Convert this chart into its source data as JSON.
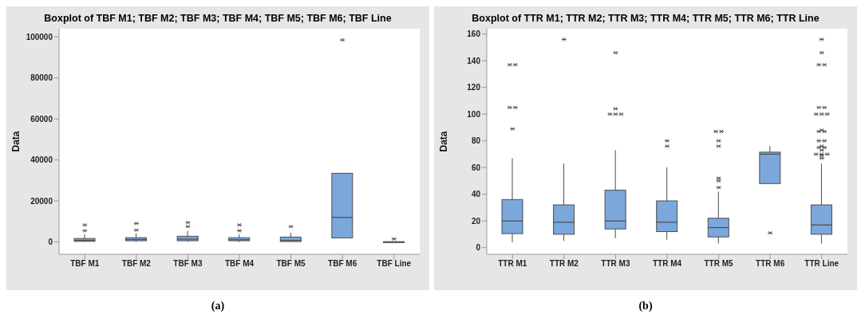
{
  "chart_data": [
    {
      "type": "box",
      "title": "Boxplot of TBF M1; TBF M2; TBF M3; TBF M4; TBF M5; TBF M6; TBF Line",
      "ylabel": "Data",
      "categories": [
        "TBF M1",
        "TBF M2",
        "TBF M3",
        "TBF M4",
        "TBF M5",
        "TBF M6",
        "TBF Line"
      ],
      "color": "#7ba7db",
      "ylim": [
        -6000,
        104000
      ],
      "yticks": [
        0,
        20000,
        40000,
        60000,
        80000,
        100000
      ],
      "annotations": [
        "(a)"
      ],
      "boxes": [
        {
          "low": 0,
          "q1": 300,
          "median": 800,
          "q3": 1700,
          "high": 3800,
          "outliers": [
            5500,
            8300
          ]
        },
        {
          "low": 0,
          "q1": 600,
          "median": 1200,
          "q3": 2100,
          "high": 4200,
          "outliers": [
            5800,
            9000
          ]
        },
        {
          "low": 0,
          "q1": 600,
          "median": 1400,
          "q3": 2800,
          "high": 5500,
          "outliers": [
            7500,
            9500
          ]
        },
        {
          "low": 0,
          "q1": 600,
          "median": 1100,
          "q3": 2100,
          "high": 3800,
          "outliers": [
            5500,
            8300
          ]
        },
        {
          "low": 0,
          "q1": 200,
          "median": 800,
          "q3": 2400,
          "high": 4500,
          "outliers": [
            7500
          ]
        },
        {
          "low": 2000,
          "q1": 2000,
          "median": 12000,
          "q3": 33500,
          "high": 33500,
          "outliers": [
            98500
          ]
        },
        {
          "low": 0,
          "q1": 0,
          "median": 50,
          "q3": 100,
          "high": 100,
          "outliers": [
            1500
          ]
        }
      ]
    },
    {
      "type": "box",
      "title": "Boxplot of TTR M1; TTR M2; TTR M3; TTR M4; TTR M5; TTR M6; TTR Line",
      "ylabel": "Data",
      "categories": [
        "TTR M1",
        "TTR M2",
        "TTR M3",
        "TTR M4",
        "TTR M5",
        "TTR M6",
        "TTR Line"
      ],
      "color": "#7ba7db",
      "ylim": [
        -5,
        164
      ],
      "yticks": [
        0,
        20,
        40,
        60,
        80,
        100,
        120,
        140,
        160
      ],
      "annotations": [
        "(b)"
      ],
      "boxes": [
        {
          "low": 4,
          "q1": 10.5,
          "median": 20,
          "q3": 36,
          "high": 67,
          "outliers": [
            89,
            105,
            105,
            137,
            137
          ]
        },
        {
          "low": 5,
          "q1": 10,
          "median": 19,
          "q3": 32,
          "high": 63,
          "outliers": [
            156
          ]
        },
        {
          "low": 7,
          "q1": 14,
          "median": 20,
          "q3": 43,
          "high": 73,
          "outliers": [
            100,
            100,
            100,
            104,
            146
          ]
        },
        {
          "low": 6,
          "q1": 12,
          "median": 19,
          "q3": 35,
          "high": 60,
          "outliers": [
            76,
            80
          ]
        },
        {
          "low": 3,
          "q1": 8,
          "median": 15,
          "q3": 22,
          "high": 42,
          "outliers": [
            45,
            50,
            52,
            76,
            80,
            87,
            87
          ]
        },
        {
          "low": 48,
          "q1": 48,
          "median": 70,
          "q3": 71.5,
          "high": 76,
          "outliers": [
            11
          ]
        },
        {
          "low": 3,
          "q1": 10,
          "median": 17,
          "q3": 32,
          "high": 63,
          "outliers": [
            67,
            69,
            70,
            70,
            70,
            73,
            75,
            75,
            76,
            80,
            80,
            87,
            87,
            88,
            100,
            100,
            100,
            105,
            105,
            137,
            137,
            146,
            156
          ]
        }
      ]
    }
  ]
}
